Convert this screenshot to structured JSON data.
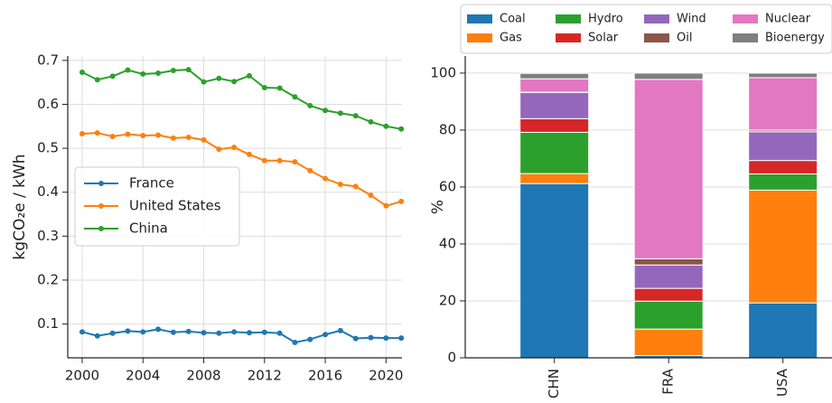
{
  "chart_data": [
    {
      "type": "line",
      "ylabel": "kgCO₂e / kWh",
      "x": [
        2000,
        2001,
        2002,
        2003,
        2004,
        2005,
        2006,
        2007,
        2008,
        2009,
        2010,
        2011,
        2012,
        2013,
        2014,
        2015,
        2016,
        2017,
        2018,
        2019,
        2020,
        2021
      ],
      "xlim": [
        1999.05,
        2021.05
      ],
      "xticks": [
        2000,
        2004,
        2008,
        2012,
        2016,
        2020
      ],
      "ylim": [
        0.023,
        0.71
      ],
      "yticks": [
        0.1,
        0.2,
        0.3,
        0.4,
        0.5,
        0.6,
        0.7
      ],
      "grid": true,
      "legend": "center left",
      "series": [
        {
          "name": "France",
          "color": "#1f77b4",
          "values": [
            0.082,
            0.073,
            0.079,
            0.084,
            0.082,
            0.088,
            0.081,
            0.083,
            0.08,
            0.079,
            0.082,
            0.08,
            0.081,
            0.079,
            0.058,
            0.065,
            0.076,
            0.085,
            0.067,
            0.069,
            0.068,
            0.068
          ]
        },
        {
          "name": "United States",
          "color": "#ff7f0e",
          "values": [
            0.533,
            0.535,
            0.527,
            0.532,
            0.529,
            0.53,
            0.523,
            0.525,
            0.519,
            0.498,
            0.502,
            0.486,
            0.472,
            0.472,
            0.469,
            0.449,
            0.431,
            0.418,
            0.413,
            0.393,
            0.369,
            0.379
          ]
        },
        {
          "name": "China",
          "color": "#2ca02c",
          "values": [
            0.673,
            0.656,
            0.664,
            0.678,
            0.669,
            0.671,
            0.677,
            0.679,
            0.651,
            0.659,
            0.652,
            0.665,
            0.638,
            0.637,
            0.617,
            0.597,
            0.586,
            0.58,
            0.574,
            0.56,
            0.55,
            0.544
          ]
        }
      ]
    },
    {
      "type": "bar",
      "stacked": true,
      "ylabel": "%",
      "categories": [
        "CHN",
        "FRA",
        "USA"
      ],
      "ylim": [
        0,
        106
      ],
      "yticks": [
        0,
        20,
        40,
        60,
        80,
        100
      ],
      "grid": true,
      "legend": "upper center",
      "series": [
        {
          "name": "Coal",
          "color": "#1f77b4",
          "values": [
            61.2,
            0.8,
            19.3
          ]
        },
        {
          "name": "Gas",
          "color": "#ff7f0e",
          "values": [
            3.5,
            9.3,
            39.6
          ]
        },
        {
          "name": "Hydro",
          "color": "#2ca02c",
          "values": [
            14.5,
            9.8,
            5.7
          ]
        },
        {
          "name": "Solar",
          "color": "#d62728",
          "values": [
            4.8,
            4.5,
            4.7
          ]
        },
        {
          "name": "Wind",
          "color": "#9467bd",
          "values": [
            9.2,
            8.2,
            10.1
          ]
        },
        {
          "name": "Oil",
          "color": "#8c564b",
          "values": [
            0.1,
            2.2,
            0.6
          ]
        },
        {
          "name": "Nuclear",
          "color": "#e377c2",
          "values": [
            4.7,
            63.0,
            18.4
          ]
        },
        {
          "name": "Bioenergy",
          "color": "#7f7f7f",
          "values": [
            1.9,
            2.2,
            1.6
          ]
        }
      ]
    }
  ]
}
